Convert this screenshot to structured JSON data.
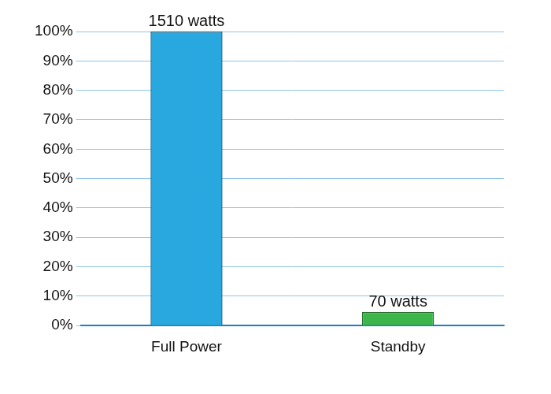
{
  "chart_data": {
    "type": "bar",
    "categories": [
      "Full Power",
      "Standby"
    ],
    "values": [
      100,
      4.6
    ],
    "colors": [
      "#29a8e0",
      "#3cb54a"
    ],
    "annotations": [
      {
        "category": "Full Power",
        "text": "1510 watts"
      },
      {
        "category": "Standby",
        "text": "70 watts"
      }
    ],
    "ylim": [
      0,
      100
    ],
    "yticks": [
      {
        "value": 0,
        "label": "0%"
      },
      {
        "value": 10,
        "label": "10%"
      },
      {
        "value": 20,
        "label": "20%"
      },
      {
        "value": 30,
        "label": "30%"
      },
      {
        "value": 40,
        "label": "40%"
      },
      {
        "value": 50,
        "label": "50%"
      },
      {
        "value": 60,
        "label": "60%"
      },
      {
        "value": 70,
        "label": "70%"
      },
      {
        "value": 80,
        "label": "80%"
      },
      {
        "value": 90,
        "label": "90%"
      },
      {
        "value": 100,
        "label": "100%"
      }
    ],
    "grid": true
  }
}
